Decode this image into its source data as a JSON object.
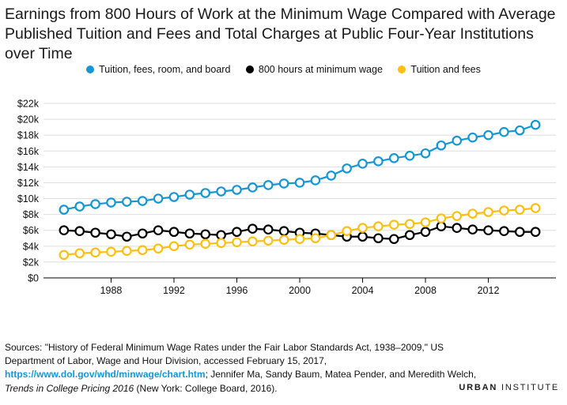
{
  "title": "Earnings from 800 Hours of Work at the Minimum Wage Compared with Average Published Tuition and Fees and Total Charges at Public Four-Year Institutions over Time",
  "source": {
    "prefix": "Sources: \"History of Federal Minimum Wage Rates under the Fair Labor Standards Act, 1938–2009,\" US Department of Labor, Wage and Hour Division, accessed February 15, 2017, ",
    "link": "https://www.dol.gov/whd/minwage/chart.htm",
    "middle": "; Jennifer Ma, Sandy Baum, Matea Pender, and Meredith Welch, ",
    "italic": "Trends in College Pricing 2016",
    "suffix": " (New York: College Board, 2016)."
  },
  "brand": {
    "bold": "URBAN",
    "rest": " INSTITUTE"
  },
  "colors": {
    "tuition_room_board": "#1696d2",
    "min_wage": "#000000",
    "tuition_fees": "#fdbf11",
    "grid": "#dedede"
  },
  "chart_data": {
    "type": "line",
    "legend_position": "top",
    "grid": true,
    "x": [
      1985,
      1986,
      1987,
      1988,
      1989,
      1990,
      1991,
      1992,
      1993,
      1994,
      1995,
      1996,
      1997,
      1998,
      1999,
      2000,
      2001,
      2002,
      2003,
      2004,
      2005,
      2006,
      2007,
      2008,
      2009,
      2010,
      2011,
      2012,
      2013,
      2014,
      2015
    ],
    "xlim": [
      1983.7,
      2016.3
    ],
    "xticks": [
      1988,
      1992,
      1996,
      2000,
      2004,
      2008,
      2012
    ],
    "ylim": [
      0,
      22000
    ],
    "yticks": [
      0,
      2000,
      4000,
      6000,
      8000,
      10000,
      12000,
      14000,
      16000,
      18000,
      20000,
      22000
    ],
    "ytick_labels": [
      "$0",
      "$2k",
      "$4k",
      "$6k",
      "$8k",
      "$10k",
      "$12k",
      "$14k",
      "$16k",
      "$18k",
      "$20k",
      "$22k"
    ],
    "xlabel": "",
    "ylabel": "",
    "series": [
      {
        "name": "Tuition, fees, room, and board",
        "color": "#1696d2",
        "values": [
          8600,
          9000,
          9300,
          9500,
          9600,
          9700,
          10000,
          10200,
          10500,
          10700,
          10900,
          11100,
          11400,
          11700,
          11900,
          12000,
          12300,
          12900,
          13800,
          14400,
          14700,
          15100,
          15400,
          15700,
          16700,
          17300,
          17700,
          18000,
          18400,
          18600,
          19300
        ]
      },
      {
        "name": "800 hours at minimum wage",
        "color": "#000000",
        "values": [
          6000,
          5900,
          5700,
          5500,
          5200,
          5600,
          6000,
          5800,
          5600,
          5500,
          5400,
          5800,
          6200,
          6100,
          5900,
          5700,
          5600,
          5400,
          5200,
          5200,
          5000,
          4900,
          5400,
          5800,
          6500,
          6300,
          6100,
          6000,
          5900,
          5800,
          5800
        ]
      },
      {
        "name": "Tuition and fees",
        "color": "#fdbf11",
        "values": [
          2900,
          3100,
          3200,
          3300,
          3400,
          3500,
          3700,
          4000,
          4200,
          4300,
          4400,
          4500,
          4600,
          4700,
          4800,
          4900,
          5000,
          5400,
          5900,
          6300,
          6500,
          6700,
          6800,
          7000,
          7500,
          7800,
          8100,
          8300,
          8500,
          8600,
          8800
        ]
      }
    ]
  }
}
